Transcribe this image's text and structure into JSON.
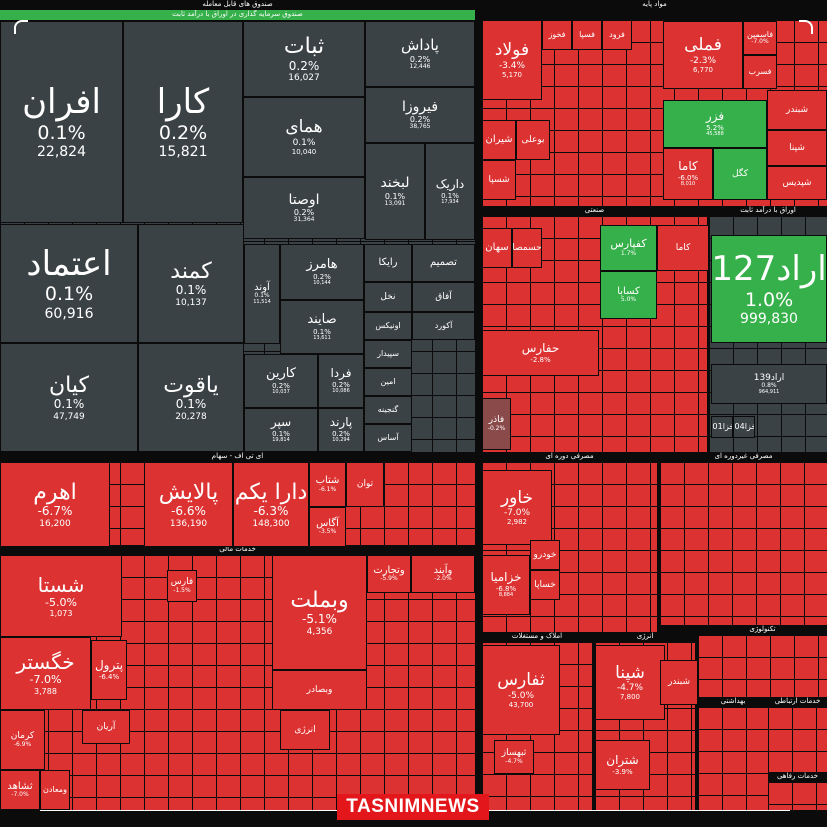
{
  "logo": "TASNIMNEWS",
  "colors": {
    "neutral": "#3b4245",
    "red": "#dc3232",
    "red_dark": "#b5393a",
    "green": "#36b04a",
    "muted": "#8a4a4a"
  },
  "chart_data": {
    "type": "treemap",
    "value_label": "trade value",
    "sectors": [
      {
        "name": "صندوق های قابل معامله",
        "subtitle": "صندوق سرمایه گذاری در اوراق با درآمد ثابت"
      },
      {
        "name": "مواد پایه"
      },
      {
        "name": "اوراق با درآمد ثابت"
      },
      {
        "name": "صنعتی"
      },
      {
        "name": "ای تی اف - سهام"
      },
      {
        "name": "خدمات مالی"
      },
      {
        "name": "مصرفی دوره ای"
      },
      {
        "name": "مصرفی غیردوره ای"
      },
      {
        "name": "املاک و مستغلات"
      },
      {
        "name": "انرژی"
      },
      {
        "name": "تکنولوژی"
      },
      {
        "name": "بهداشتی"
      },
      {
        "name": "خدمات ارتباطی"
      },
      {
        "name": "خدمات رفاهی"
      }
    ],
    "tiles": [
      {
        "name": "افران",
        "change": "0.1%",
        "value": "22,824"
      },
      {
        "name": "کارا",
        "change": "0.2%",
        "value": "15,821"
      },
      {
        "name": "ثبات",
        "change": "0.2%",
        "value": "16,027"
      },
      {
        "name": "پاداش",
        "change": "0.2%",
        "value": "12,446"
      },
      {
        "name": "همای",
        "change": "0.1%",
        "value": "10,040"
      },
      {
        "name": "فیروزا",
        "change": "0.2%",
        "value": "38,765"
      },
      {
        "name": "اوصتا",
        "change": "0.2%",
        "value": "31,364"
      },
      {
        "name": "لبخند",
        "change": "0.1%",
        "value": "13,091"
      },
      {
        "name": "داریک",
        "change": "0.1%",
        "value": "17,934"
      },
      {
        "name": "اعتماد",
        "change": "0.1%",
        "value": "60,916"
      },
      {
        "name": "کمند",
        "change": "0.1%",
        "value": "10,137"
      },
      {
        "name": "هامرز",
        "change": "0.2%",
        "value": "10,144"
      },
      {
        "name": "آوند",
        "change": "0.1%",
        "value": "11,514"
      },
      {
        "name": "صایند",
        "change": "0.1%",
        "value": "13,611"
      },
      {
        "name": "رایکا",
        "change": "",
        "value": ""
      },
      {
        "name": "تصمیم",
        "change": "",
        "value": ""
      },
      {
        "name": "نخل",
        "change": "",
        "value": ""
      },
      {
        "name": "آفاق",
        "change": "",
        "value": ""
      },
      {
        "name": "اونیکس",
        "change": "",
        "value": ""
      },
      {
        "name": "آکورد",
        "change": "",
        "value": ""
      },
      {
        "name": "کیان",
        "change": "0.1%",
        "value": "47,749"
      },
      {
        "name": "یاقوت",
        "change": "0.1%",
        "value": "20,278"
      },
      {
        "name": "کارین",
        "change": "0.2%",
        "value": "10,037"
      },
      {
        "name": "فردا",
        "change": "0.2%",
        "value": "10,086"
      },
      {
        "name": "سپر",
        "change": "0.1%",
        "value": "19,814"
      },
      {
        "name": "پارند",
        "change": "0.2%",
        "value": "10,294"
      },
      {
        "name": "سپیدار",
        "change": "",
        "value": ""
      },
      {
        "name": "امین",
        "change": "",
        "value": ""
      },
      {
        "name": "گنجینه",
        "change": "",
        "value": ""
      },
      {
        "name": "آساس",
        "change": "",
        "value": ""
      },
      {
        "name": "فولاد",
        "change": "-3.4%",
        "value": "5,170"
      },
      {
        "name": "فملی",
        "change": "-2.3%",
        "value": "6,770"
      },
      {
        "name": "فاسمین",
        "change": "-7.0%",
        "value": ""
      },
      {
        "name": "فسرب",
        "change": "",
        "value": ""
      },
      {
        "name": "فخوز",
        "change": "",
        "value": ""
      },
      {
        "name": "فسپا",
        "change": "",
        "value": ""
      },
      {
        "name": "فرود",
        "change": "",
        "value": ""
      },
      {
        "name": "فزر",
        "change": "5.2%",
        "value": "45,588"
      },
      {
        "name": "کاما",
        "change": "-6.0%",
        "value": "8,010"
      },
      {
        "name": "کگل",
        "change": "",
        "value": ""
      },
      {
        "name": "شیران",
        "change": "",
        "value": ""
      },
      {
        "name": "بوعلی",
        "change": "",
        "value": ""
      },
      {
        "name": "شبندر",
        "change": "",
        "value": ""
      },
      {
        "name": "شپنا",
        "change": "",
        "value": ""
      },
      {
        "name": "شپدیس",
        "change": "",
        "value": ""
      },
      {
        "name": "شسپا",
        "change": "",
        "value": ""
      },
      {
        "name": "اراد127",
        "change": "1.0%",
        "value": "999,830"
      },
      {
        "name": "اراد139",
        "change": "0.8%",
        "value": "964,911"
      },
      {
        "name": "اخزا101",
        "change": "",
        "value": ""
      },
      {
        "name": "اخزا104",
        "change": "",
        "value": ""
      },
      {
        "name": "سهان",
        "change": "",
        "value": ""
      },
      {
        "name": "حسمصا",
        "change": "",
        "value": ""
      },
      {
        "name": "کفپارس",
        "change": "1.7%",
        "value": ""
      },
      {
        "name": "کسابا",
        "change": "5.0%",
        "value": ""
      },
      {
        "name": "کاما",
        "change": "",
        "value": ""
      },
      {
        "name": "حفارس",
        "change": "-2.8%",
        "value": ""
      },
      {
        "name": "فاذر",
        "change": "-0.2%",
        "value": ""
      },
      {
        "name": "اهرم",
        "change": "-6.7%",
        "value": "16,200"
      },
      {
        "name": "پالایش",
        "change": "-6.6%",
        "value": "136,190"
      },
      {
        "name": "دارا یکم",
        "change": "-6.3%",
        "value": "148,300"
      },
      {
        "name": "شتاب",
        "change": "-6.1%",
        "value": ""
      },
      {
        "name": "توان",
        "change": "",
        "value": ""
      },
      {
        "name": "آگاس",
        "change": "-3.5%",
        "value": ""
      },
      {
        "name": "شستا",
        "change": "-5.0%",
        "value": "1,073"
      },
      {
        "name": "خگستر",
        "change": "-7.0%",
        "value": "3,788"
      },
      {
        "name": "وبملت",
        "change": "-5.1%",
        "value": "4,356"
      },
      {
        "name": "وتجارت",
        "change": "-5.9%",
        "value": ""
      },
      {
        "name": "وآیند",
        "change": "-2.0%",
        "value": ""
      },
      {
        "name": "وبصادر",
        "change": "",
        "value": ""
      },
      {
        "name": "پترول",
        "change": "-6.4%",
        "value": ""
      },
      {
        "name": "فارس",
        "change": "-1.5%",
        "value": ""
      },
      {
        "name": "کرمان",
        "change": "-6.9%",
        "value": ""
      },
      {
        "name": "آریان",
        "change": "",
        "value": ""
      },
      {
        "name": "ثشاهد",
        "change": "-7.0%",
        "value": ""
      },
      {
        "name": "ومعادن",
        "change": "",
        "value": ""
      },
      {
        "name": "انرژی",
        "change": "",
        "value": ""
      },
      {
        "name": "خاور",
        "change": "-7.0%",
        "value": "2,982"
      },
      {
        "name": "خزامیا",
        "change": "-6.8%",
        "value": "8,884"
      },
      {
        "name": "خودرو",
        "change": "",
        "value": ""
      },
      {
        "name": "خساپا",
        "change": "",
        "value": ""
      },
      {
        "name": "ثفارس",
        "change": "-5.0%",
        "value": "43,700"
      },
      {
        "name": "شپنا",
        "change": "-4.7%",
        "value": "7,800"
      },
      {
        "name": "شتران",
        "change": "-3.9%",
        "value": ""
      },
      {
        "name": "ثبهساز",
        "change": "-4.7%",
        "value": ""
      },
      {
        "name": "شبندر",
        "change": "",
        "value": ""
      }
    ]
  }
}
